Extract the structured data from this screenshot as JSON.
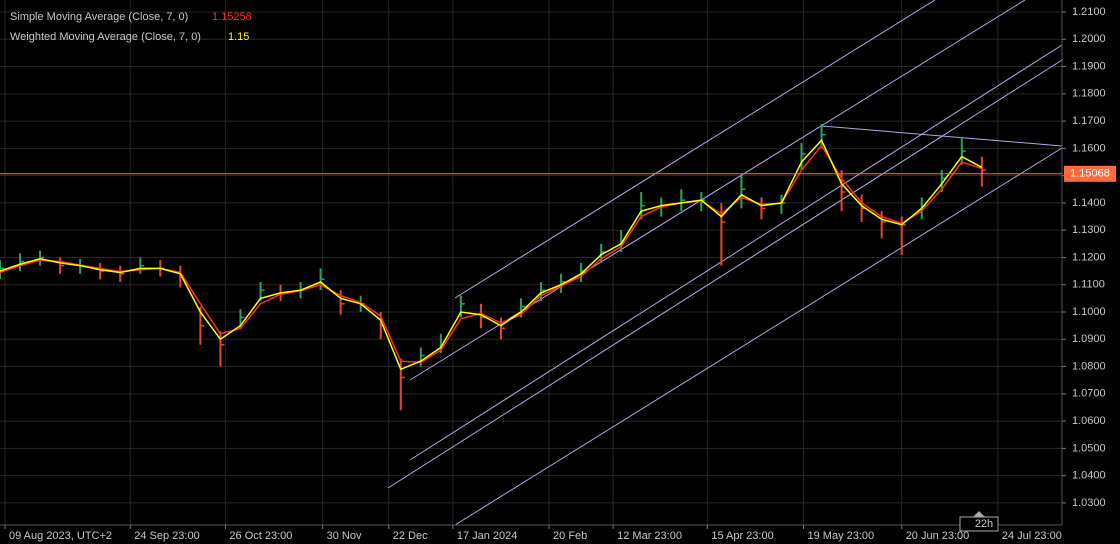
{
  "chart_data": {
    "type": "ohlc",
    "x": [
      0,
      2,
      4,
      6,
      8,
      10,
      12,
      14,
      16,
      18,
      20,
      22,
      24,
      26,
      28,
      30,
      32,
      34,
      36,
      38,
      40,
      42,
      44,
      46,
      48,
      50,
      52,
      54,
      56,
      58,
      60,
      62,
      64,
      66,
      68,
      70,
      72,
      74,
      76,
      78,
      80,
      82,
      84,
      86,
      88,
      90,
      92,
      94,
      96,
      98
    ],
    "values": [
      1.116,
      1.1185,
      1.12,
      1.117,
      1.117,
      1.115,
      1.114,
      1.117,
      1.116,
      1.113,
      1.095,
      1.088,
      1.098,
      1.108,
      1.107,
      1.108,
      1.112,
      1.103,
      1.103,
      1.095,
      1.076,
      1.084,
      1.088,
      1.103,
      1.098,
      1.094,
      1.102,
      1.108,
      1.111,
      1.115,
      1.122,
      1.126,
      1.139,
      1.139,
      1.141,
      1.141,
      1.133,
      1.145,
      1.138,
      1.14,
      1.158,
      1.165,
      1.144,
      1.138,
      1.133,
      1.132,
      1.139,
      1.149,
      1.159,
      1.152
    ],
    "high": [
      1.119,
      1.1215,
      1.1225,
      1.12,
      1.1195,
      1.118,
      1.117,
      1.12,
      1.119,
      1.117,
      1.102,
      1.093,
      1.101,
      1.111,
      1.11,
      1.111,
      1.116,
      1.108,
      1.106,
      1.1,
      1.083,
      1.087,
      1.092,
      1.106,
      1.103,
      1.098,
      1.105,
      1.111,
      1.114,
      1.118,
      1.125,
      1.13,
      1.144,
      1.142,
      1.145,
      1.144,
      1.14,
      1.15,
      1.142,
      1.143,
      1.162,
      1.169,
      1.152,
      1.143,
      1.137,
      1.135,
      1.142,
      1.152,
      1.164,
      1.157
    ],
    "low": [
      1.112,
      1.115,
      1.117,
      1.114,
      1.114,
      1.112,
      1.111,
      1.114,
      1.113,
      1.109,
      1.088,
      1.08,
      1.094,
      1.104,
      1.104,
      1.105,
      1.108,
      1.099,
      1.1,
      1.09,
      1.064,
      1.08,
      1.085,
      1.098,
      1.094,
      1.09,
      1.098,
      1.104,
      1.107,
      1.111,
      1.118,
      1.122,
      1.134,
      1.135,
      1.137,
      1.137,
      1.117,
      1.138,
      1.134,
      1.136,
      1.152,
      1.16,
      1.137,
      1.133,
      1.127,
      1.121,
      1.134,
      1.144,
      1.154,
      1.146
    ],
    "up_color": "#27a55a",
    "down_color": "#e5482c",
    "series": [
      {
        "name": "Simple Moving Average (Close, 7, 0)",
        "color": "#ff2a2a",
        "last": 1.15258,
        "values": [
          1.1145,
          1.117,
          1.119,
          1.1185,
          1.1172,
          1.116,
          1.1148,
          1.1155,
          1.116,
          1.1145,
          1.103,
          1.092,
          1.094,
          1.103,
          1.1065,
          1.1078,
          1.11,
          1.106,
          1.1035,
          1.0985,
          1.082,
          1.0815,
          1.086,
          1.0975,
          1.0995,
          1.096,
          1.099,
          1.106,
          1.1095,
          1.113,
          1.1195,
          1.124,
          1.135,
          1.1385,
          1.14,
          1.1408,
          1.136,
          1.142,
          1.1395,
          1.1398,
          1.152,
          1.161,
          1.149,
          1.14,
          1.135,
          1.1325,
          1.137,
          1.145,
          1.155,
          1.1526
        ]
      },
      {
        "name": "Weighted Moving Average (Close, 7, 0)",
        "color": "#ffff00",
        "last": 1.15,
        "values": [
          1.115,
          1.1175,
          1.1195,
          1.118,
          1.117,
          1.1155,
          1.1145,
          1.116,
          1.116,
          1.114,
          1.1,
          1.09,
          1.095,
          1.105,
          1.107,
          1.108,
          1.111,
          1.105,
          1.103,
          1.097,
          1.079,
          1.082,
          1.087,
          1.1,
          1.099,
          1.095,
          1.1,
          1.107,
          1.11,
          1.114,
          1.121,
          1.125,
          1.137,
          1.139,
          1.14,
          1.141,
          1.135,
          1.143,
          1.139,
          1.14,
          1.155,
          1.163,
          1.147,
          1.139,
          1.134,
          1.132,
          1.138,
          1.147,
          1.157,
          1.153
        ]
      }
    ],
    "price_line": {
      "value": 1.15068,
      "color": "#ff6a3d"
    },
    "countdown": "22h",
    "xlim": [
      0,
      106
    ],
    "xticks": [
      {
        "value": 0.5,
        "label": "09 Aug 2023, UTC+2"
      },
      {
        "value": 13,
        "label": "24 Sep 23:00"
      },
      {
        "value": 22.5,
        "label": "26 Oct 23:00"
      },
      {
        "value": 32.2,
        "label": "30 Nov"
      },
      {
        "value": 38.8,
        "label": "22 Dec"
      },
      {
        "value": 45.2,
        "label": "17 Jan 2024"
      },
      {
        "value": 54.8,
        "label": "20 Feb"
      },
      {
        "value": 61.2,
        "label": "12 Mar 23:00"
      },
      {
        "value": 70.6,
        "label": "15 Apr 23:00"
      },
      {
        "value": 80.2,
        "label": "19 May 23:00"
      },
      {
        "value": 90,
        "label": "20 Jun 23:00"
      },
      {
        "value": 99.6,
        "label": "24 Jul 23:00"
      }
    ],
    "ylim": [
      1.0219,
      1.2144
    ],
    "yticks": [
      {
        "value": 1.03,
        "label": "1.0300"
      },
      {
        "value": 1.04,
        "label": "1.0400"
      },
      {
        "value": 1.05,
        "label": "1.0500"
      },
      {
        "value": 1.06,
        "label": "1.0600"
      },
      {
        "value": 1.07,
        "label": "1.0700"
      },
      {
        "value": 1.08,
        "label": "1.0800"
      },
      {
        "value": 1.09,
        "label": "1.0900"
      },
      {
        "value": 1.1,
        "label": "1.1000"
      },
      {
        "value": 1.11,
        "label": "1.1100"
      },
      {
        "value": 1.12,
        "label": "1.1200"
      },
      {
        "value": 1.13,
        "label": "1.1300"
      },
      {
        "value": 1.14,
        "label": "1.1400"
      },
      {
        "value": 1.15,
        "label": "1.1500"
      },
      {
        "value": 1.16,
        "label": "1.1600"
      },
      {
        "value": 1.17,
        "label": "1.1700"
      },
      {
        "value": 1.18,
        "label": "1.1800"
      },
      {
        "value": 1.19,
        "label": "1.1900"
      },
      {
        "value": 1.2,
        "label": "1.2000"
      },
      {
        "value": 1.21,
        "label": "1.2100"
      }
    ],
    "grid": true
  }
}
